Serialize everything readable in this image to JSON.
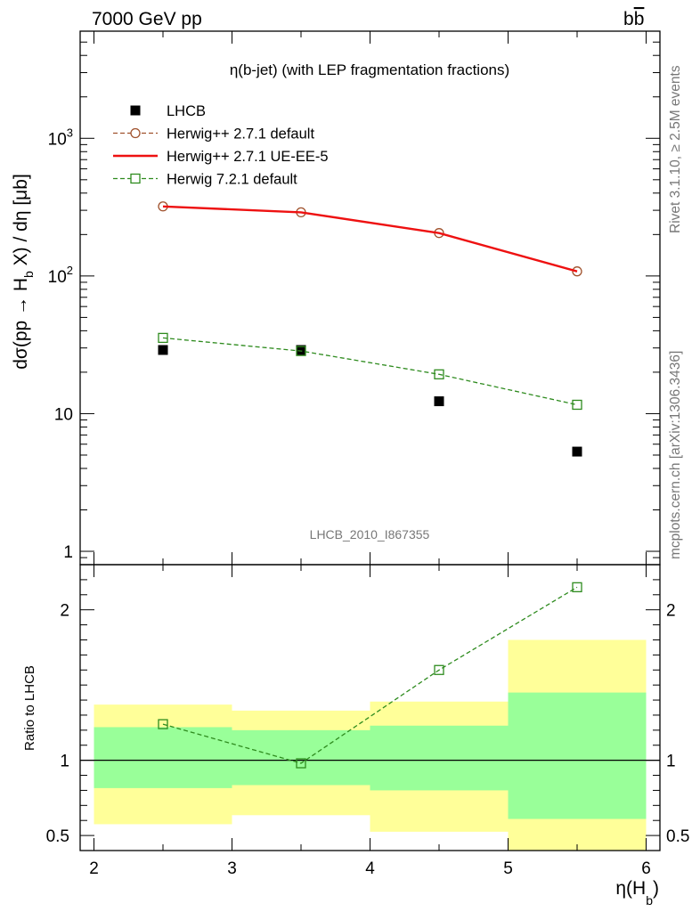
{
  "header": {
    "left": "7000 GeV pp",
    "right": "b",
    "right_bar": "b"
  },
  "side_labels": {
    "rivet": "Rivet 3.1.10, ≥ 2.5M events",
    "mcplots": "mcplots.cern.ch [arXiv:1306.3436]"
  },
  "chart_data": [
    {
      "type": "line",
      "title": "η(b-jet) (with LEP fragmentation fractions)",
      "ylabel": "dσ(pp → H_b X) / dη [μb]",
      "ylabel_parts": {
        "a": "dσ(pp → H",
        "sub": "b",
        "b": " X) / dη [μb]"
      },
      "xlim": [
        1.9,
        6.1
      ],
      "ylim": [
        0.8,
        6000
      ],
      "log_y": true,
      "y_ticks": [
        {
          "value": 1,
          "label": "1"
        },
        {
          "value": 10,
          "label": "10"
        },
        {
          "value": 100,
          "label": "10",
          "sup": "2"
        },
        {
          "value": 1000,
          "label": "10",
          "sup": "3"
        }
      ],
      "watermark": "LHCB_2010_I867355",
      "legend_position": "top-left",
      "series": [
        {
          "name": "LHCB",
          "style": "data",
          "color": "#000000",
          "x": [
            2.5,
            3.5,
            4.5,
            5.5
          ],
          "values": [
            29,
            29,
            12.3,
            5.3
          ]
        },
        {
          "name": "Herwig++ 2.7.1 default",
          "style": "dashed-circle",
          "color": "#a0522d",
          "x": [
            2.5,
            3.5,
            4.5,
            5.5
          ],
          "values": [
            320,
            290,
            205,
            108
          ]
        },
        {
          "name": "Herwig++ 2.7.1 UE-EE-5",
          "style": "solid",
          "color": "#ee1111",
          "x": [
            2.5,
            3.5,
            4.5,
            5.5
          ],
          "values": [
            320,
            290,
            205,
            108
          ]
        },
        {
          "name": "Herwig 7.2.1 default",
          "style": "dashed-square",
          "color": "#2e8b1e",
          "x": [
            2.5,
            3.5,
            4.5,
            5.5
          ],
          "values": [
            35.5,
            28.5,
            19.3,
            11.6
          ]
        }
      ]
    },
    {
      "type": "line",
      "ylabel": "Ratio to LHCB",
      "xlabel_parts": {
        "a": "η(H",
        "sub": "b",
        "b": ")"
      },
      "xlim": [
        1.9,
        6.1
      ],
      "ylim": [
        0.4,
        2.3
      ],
      "x_ticks": [
        2,
        3,
        4,
        5,
        6
      ],
      "y_ticks": [
        {
          "value": 0.5,
          "label": "0.5"
        },
        {
          "value": 1,
          "label": "1"
        },
        {
          "value": 2,
          "label": "2"
        }
      ],
      "bands": [
        {
          "x0": 2,
          "x1": 3,
          "inner": [
            0.815,
            1.22
          ],
          "outer": [
            0.575,
            1.37
          ]
        },
        {
          "x0": 3,
          "x1": 4,
          "inner": [
            0.835,
            1.2
          ],
          "outer": [
            0.635,
            1.33
          ]
        },
        {
          "x0": 4,
          "x1": 5,
          "inner": [
            0.8,
            1.23
          ],
          "outer": [
            0.525,
            1.39
          ]
        },
        {
          "x0": 5,
          "x1": 6,
          "inner": [
            0.61,
            1.45
          ],
          "outer": [
            0.3,
            1.8
          ]
        }
      ],
      "reference": 1,
      "series": [
        {
          "name": "Herwig 7.2.1 default",
          "style": "dashed-square",
          "color": "#2e8b1e",
          "x": [
            2.5,
            3.5,
            4.5,
            5.5
          ],
          "values": [
            1.24,
            0.98,
            1.6,
            2.15
          ]
        }
      ]
    }
  ],
  "colors": {
    "band_inner": "#99ff99",
    "band_outer": "#ffff99",
    "axis": "#000000",
    "text_grey": "#777777"
  }
}
